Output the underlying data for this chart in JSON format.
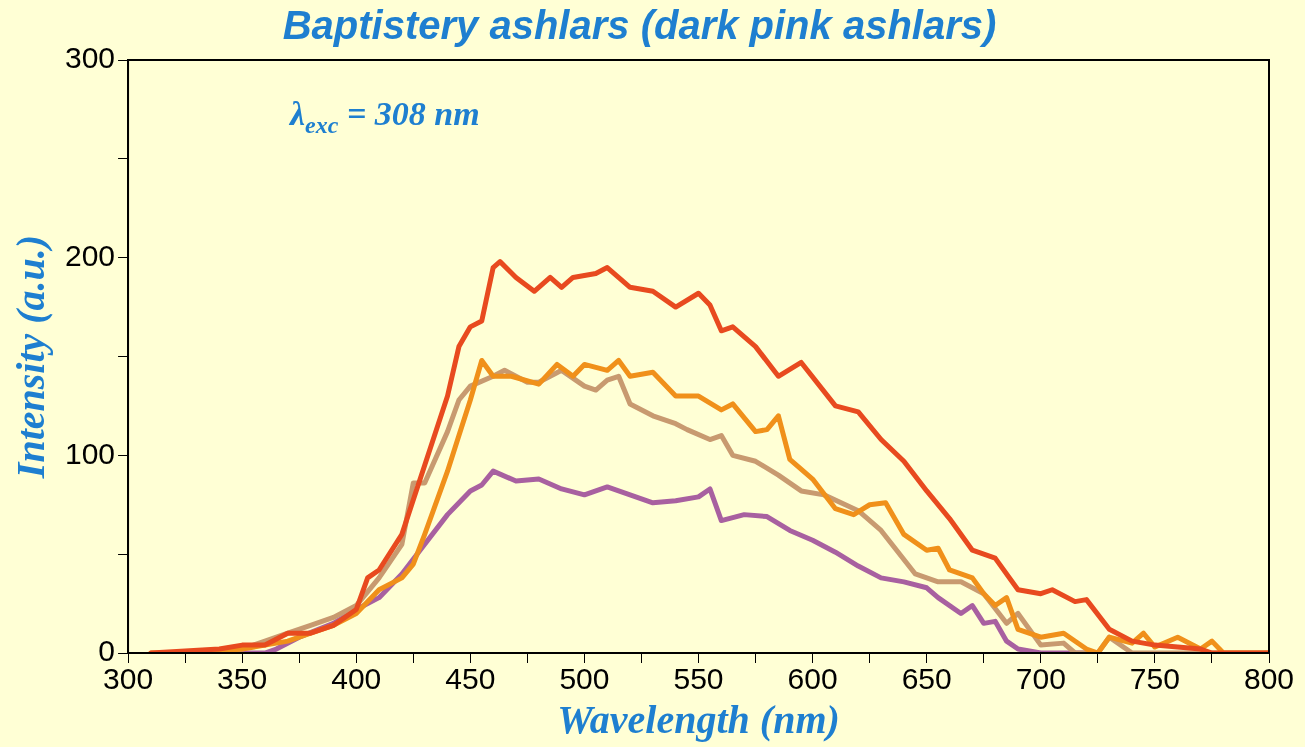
{
  "chart_data": {
    "type": "line",
    "title": "Baptistery ashlars (dark pink ashlars)",
    "xlabel": "Wavelength (nm)",
    "ylabel": "Intensity (a.u.)",
    "annotations": [
      "λ$_{exc}$ = 308 nm"
    ],
    "xlim": [
      300,
      800
    ],
    "ylim": [
      0,
      300
    ],
    "xticks": [
      300,
      {
        "value": 325,
        "label": null
      },
      350,
      {
        "value": 375,
        "label": null
      },
      400,
      {
        "value": 425,
        "label": null
      },
      450,
      {
        "value": 475,
        "label": null
      },
      500,
      {
        "value": 525,
        "label": null
      },
      550,
      {
        "value": 575,
        "label": null
      },
      600,
      {
        "value": 625,
        "label": null
      },
      650,
      {
        "value": 675,
        "label": null
      },
      700,
      {
        "value": 725,
        "label": null
      },
      750,
      {
        "value": 775,
        "label": null
      },
      800
    ],
    "yticks": [
      0,
      {
        "value": 50,
        "label": null
      },
      100,
      {
        "value": 150,
        "label": null
      },
      200,
      {
        "value": 250,
        "label": null
      },
      300
    ],
    "legend": false,
    "marker": "none",
    "line_style": "solid",
    "series": [
      {
        "color": "#e84a1f",
        "x": [
          310,
          340,
          350,
          360,
          370,
          380,
          390,
          400,
          405,
          410,
          420,
          430,
          440,
          445,
          450,
          455,
          460,
          463,
          470,
          478,
          485,
          490,
          495,
          505,
          510,
          520,
          530,
          540,
          550,
          555,
          560,
          565,
          575,
          585,
          595,
          610,
          620,
          630,
          640,
          650,
          660,
          670,
          680,
          690,
          700,
          705,
          715,
          720,
          730,
          740,
          750,
          760,
          770,
          775,
          800
        ],
        "values": [
          0,
          2,
          4,
          4,
          10,
          10,
          14,
          22,
          38,
          42,
          60,
          95,
          130,
          155,
          165,
          168,
          195,
          198,
          190,
          183,
          190,
          185,
          190,
          192,
          195,
          185,
          183,
          175,
          182,
          176,
          163,
          165,
          155,
          140,
          147,
          125,
          122,
          108,
          97,
          82,
          68,
          52,
          48,
          32,
          30,
          32,
          26,
          27,
          12,
          6,
          4,
          3,
          2,
          0,
          0
        ]
      },
      {
        "color": "#f0901a",
        "x": [
          310,
          330,
          350,
          360,
          370,
          380,
          390,
          400,
          410,
          420,
          425,
          430,
          440,
          445,
          450,
          455,
          460,
          468,
          480,
          488,
          495,
          500,
          510,
          515,
          520,
          530,
          540,
          550,
          560,
          565,
          575,
          580,
          585,
          590,
          600,
          610,
          618,
          625,
          632,
          640,
          650,
          655,
          660,
          670,
          675,
          680,
          685,
          690,
          700,
          710,
          720,
          725,
          730,
          740,
          745,
          750,
          760,
          770,
          775,
          780,
          800
        ],
        "values": [
          0,
          0,
          2,
          4,
          6,
          10,
          14,
          20,
          32,
          38,
          45,
          60,
          92,
          110,
          128,
          148,
          140,
          140,
          136,
          146,
          140,
          146,
          143,
          148,
          140,
          142,
          130,
          130,
          123,
          126,
          112,
          113,
          120,
          98,
          88,
          73,
          70,
          75,
          76,
          60,
          52,
          53,
          42,
          38,
          30,
          24,
          28,
          12,
          8,
          10,
          2,
          0,
          8,
          5,
          10,
          3,
          8,
          2,
          6,
          0,
          0
        ]
      },
      {
        "color": "#c89a70",
        "x": [
          330,
          350,
          360,
          370,
          380,
          390,
          400,
          410,
          420,
          425,
          430,
          440,
          445,
          450,
          460,
          465,
          475,
          480,
          490,
          500,
          505,
          510,
          515,
          520,
          530,
          540,
          545,
          555,
          560,
          565,
          575,
          585,
          595,
          605,
          620,
          630,
          645,
          655,
          665,
          675,
          685,
          690,
          700,
          710,
          715,
          725,
          730,
          740,
          800
        ],
        "values": [
          0,
          2,
          6,
          10,
          14,
          18,
          24,
          38,
          55,
          86,
          86,
          112,
          128,
          135,
          140,
          143,
          137,
          137,
          143,
          135,
          133,
          138,
          140,
          126,
          120,
          116,
          113,
          108,
          110,
          100,
          97,
          90,
          82,
          80,
          72,
          62,
          40,
          36,
          36,
          30,
          15,
          20,
          4,
          5,
          0,
          0,
          8,
          0,
          0
        ]
      },
      {
        "color": "#a860a0",
        "x": [
          330,
          350,
          360,
          365,
          375,
          390,
          400,
          410,
          420,
          430,
          440,
          450,
          455,
          460,
          470,
          480,
          490,
          500,
          510,
          520,
          530,
          540,
          550,
          555,
          560,
          570,
          580,
          590,
          600,
          610,
          620,
          630,
          640,
          650,
          655,
          665,
          670,
          675,
          680,
          685,
          690,
          700,
          720
        ],
        "values": [
          0,
          0,
          0,
          2,
          8,
          15,
          22,
          28,
          40,
          55,
          70,
          82,
          85,
          92,
          87,
          88,
          83,
          80,
          84,
          80,
          76,
          77,
          79,
          83,
          67,
          70,
          69,
          62,
          57,
          51,
          44,
          38,
          36,
          33,
          28,
          20,
          24,
          15,
          16,
          6,
          2,
          0,
          0
        ]
      }
    ]
  }
}
